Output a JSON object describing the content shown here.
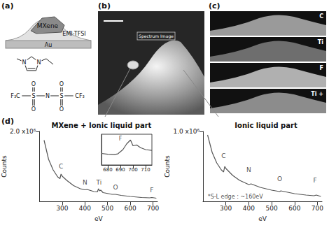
{
  "panels": {
    "a": {
      "label": "(a)",
      "layers": {
        "mxene": "MXene",
        "electrolyte": "EMI-TFSI",
        "substrate": "Au"
      },
      "cation": {
        "atoms": [
          "N",
          "N"
        ]
      },
      "anion": {
        "groups": [
          "F₃C",
          "S",
          "N",
          "S",
          "CF₃"
        ],
        "oxygen": "O"
      }
    },
    "b": {
      "label": "(b)",
      "box_label": "Spectrum Image"
    },
    "c": {
      "label": "(c)",
      "maps": [
        "C",
        "Ti",
        "F",
        "Ti +"
      ]
    },
    "d": {
      "label": "(d)"
    }
  },
  "chart_data": [
    {
      "type": "line",
      "title": "MXene + Ionic liquid part",
      "x_label": "eV",
      "y_label": "Counts",
      "color": "#555555",
      "grid": false,
      "x": [
        220,
        240,
        260,
        280,
        290,
        295,
        300,
        320,
        350,
        380,
        400,
        410,
        440,
        455,
        460,
        465,
        470,
        480,
        520,
        535,
        560,
        600,
        650,
        685,
        695,
        715
      ],
      "values": [
        1750000,
        1200000,
        900000,
        700000,
        650000,
        780000,
        720000,
        600000,
        450000,
        360000,
        330000,
        340000,
        280000,
        270000,
        360000,
        300000,
        320000,
        250000,
        200000,
        200000,
        170000,
        140000,
        110000,
        100000,
        110000,
        90000
      ],
      "xlim": [
        200,
        720
      ],
      "xticks": [
        300,
        400,
        500,
        600,
        700
      ],
      "ylim": [
        0,
        2000000
      ],
      "yticks": [
        {
          "value": 2000000,
          "label": "2.0 x10⁶"
        }
      ],
      "annotations": [
        {
          "text": "C",
          "x": 295,
          "y": 1000000
        },
        {
          "text": "N",
          "x": 400,
          "y": 550000
        },
        {
          "text": "Ti",
          "x": 462,
          "y": 550000
        },
        {
          "text": "O",
          "x": 535,
          "y": 400000
        },
        {
          "text": "F",
          "x": 695,
          "y": 320000
        }
      ]
    },
    {
      "type": "line",
      "color": "#555555",
      "grid": false,
      "tick_labels": "x",
      "x": [
        675,
        680,
        685,
        688,
        692,
        695,
        698,
        700,
        703,
        706,
        710,
        715
      ],
      "values": [
        3,
        2.8,
        2.7,
        2.9,
        4,
        5.5,
        6.5,
        5,
        5.2,
        4.5,
        4,
        3.8
      ],
      "xlim": [
        675,
        715
      ],
      "xticks": [
        680,
        690,
        700,
        710
      ],
      "ylim": [
        0,
        8
      ],
      "yticks": [],
      "annotations": [
        {
          "text": "F",
          "x": 690,
          "y": 6.8
        }
      ]
    },
    {
      "type": "line",
      "title": "Ionic liquid part",
      "x_label": "eV",
      "y_label": "Counts",
      "color": "#555555",
      "grid": false,
      "x": [
        220,
        240,
        260,
        280,
        290,
        295,
        300,
        330,
        360,
        400,
        410,
        450,
        500,
        535,
        540,
        600,
        650,
        685,
        695,
        715
      ],
      "values": [
        950000,
        700000,
        550000,
        450000,
        420000,
        500000,
        470000,
        370000,
        300000,
        240000,
        250000,
        200000,
        160000,
        140000,
        150000,
        110000,
        90000,
        80000,
        90000,
        70000
      ],
      "xlim": [
        200,
        720
      ],
      "xticks": [
        300,
        400,
        500,
        600,
        700
      ],
      "ylim": [
        0,
        1000000
      ],
      "yticks": [
        {
          "value": 1000000,
          "label": "1.0 x10⁶"
        }
      ],
      "annotations": [
        {
          "text": "C",
          "x": 290,
          "y": 650000
        },
        {
          "text": "N",
          "x": 400,
          "y": 450000
        },
        {
          "text": "O",
          "x": 535,
          "y": 320000
        },
        {
          "text": "F",
          "x": 690,
          "y": 300000
        },
        {
          "text": "*S-L edge : ~160eV",
          "x": 205,
          "y": 70000
        }
      ]
    }
  ]
}
